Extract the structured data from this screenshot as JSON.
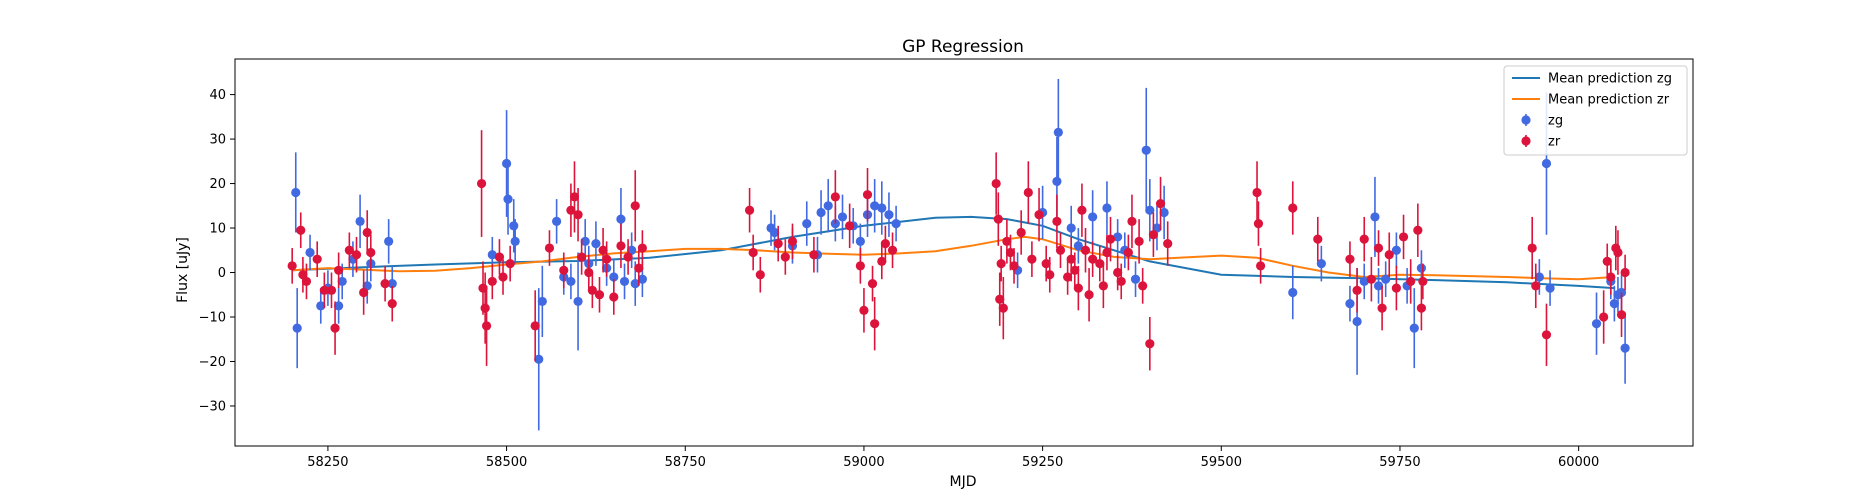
{
  "chart_data": {
    "type": "scatter",
    "title": "GP Regression",
    "xlabel": "MJD",
    "ylabel": "Flux [uJy]",
    "xlim": [
      58120,
      60160
    ],
    "ylim": [
      -39,
      48
    ],
    "x_ticks": [
      58250,
      58500,
      58750,
      59000,
      59250,
      59500,
      59750,
      60000
    ],
    "y_ticks": [
      -30,
      -20,
      -10,
      0,
      10,
      20,
      30,
      40
    ],
    "grid": false,
    "legend_position": "top-right",
    "colors": {
      "mean_zg": "#1f77b4",
      "mean_zr": "#ff7f0e",
      "points_zg": "#4169e1",
      "points_zr": "#dc143c"
    },
    "series": [
      {
        "name": "Mean prediction zg",
        "kind": "line",
        "x": [
          58200,
          58300,
          58400,
          58500,
          58600,
          58700,
          58800,
          58900,
          59000,
          59100,
          59150,
          59200,
          59250,
          59300,
          59400,
          59500,
          59600,
          59700,
          59800,
          59900,
          60000,
          60050
        ],
        "y": [
          0.5,
          1.2,
          1.8,
          2.3,
          2.6,
          3.3,
          5.0,
          8.0,
          10.5,
          12.3,
          12.5,
          12.0,
          10.5,
          7.5,
          2.5,
          -0.5,
          -1.0,
          -1.3,
          -1.7,
          -2.2,
          -3.0,
          -3.5
        ]
      },
      {
        "name": "Mean prediction zr",
        "kind": "line",
        "x": [
          58200,
          58250,
          58300,
          58350,
          58400,
          58450,
          58500,
          58550,
          58600,
          58650,
          58700,
          58750,
          58800,
          58850,
          58900,
          58950,
          59000,
          59050,
          59100,
          59150,
          59200,
          59225,
          59250,
          59300,
          59350,
          59400,
          59450,
          59500,
          59550,
          59600,
          59650,
          59700,
          59750,
          59800,
          59850,
          59900,
          59950,
          60000,
          60050
        ],
        "y": [
          0.5,
          1.0,
          0.6,
          0.3,
          0.4,
          1.0,
          1.8,
          2.5,
          3.5,
          4.3,
          4.8,
          5.3,
          5.3,
          5.0,
          4.5,
          4.2,
          4.0,
          4.3,
          4.8,
          6.0,
          7.5,
          8.0,
          7.5,
          5.0,
          3.5,
          3.0,
          3.4,
          3.8,
          3.3,
          1.5,
          0.0,
          -1.0,
          -0.5,
          -0.6,
          -0.8,
          -1.0,
          -1.3,
          -1.5,
          -1.0
        ]
      },
      {
        "name": "zg",
        "kind": "errorbar",
        "points": [
          [
            58205,
            18.0,
            9
          ],
          [
            58207,
            -12.5,
            9
          ],
          [
            58225,
            4.5,
            4
          ],
          [
            58240,
            -7.5,
            4
          ],
          [
            58250,
            -3.5,
            4
          ],
          [
            58265,
            -7.5,
            4
          ],
          [
            58270,
            -2.0,
            4
          ],
          [
            58285,
            3.0,
            4
          ],
          [
            58295,
            11.5,
            6
          ],
          [
            58305,
            -3.0,
            4
          ],
          [
            58310,
            2.0,
            4
          ],
          [
            58335,
            7.0,
            5
          ],
          [
            58340,
            -2.5,
            4
          ],
          [
            58480,
            4.0,
            4
          ],
          [
            58500,
            24.5,
            12
          ],
          [
            58502,
            16.5,
            8
          ],
          [
            58510,
            10.5,
            6
          ],
          [
            58512,
            7.0,
            5
          ],
          [
            58545,
            -19.5,
            16
          ],
          [
            58550,
            -6.5,
            8
          ],
          [
            58570,
            11.5,
            5
          ],
          [
            58580,
            -1.0,
            4
          ],
          [
            58590,
            -2.0,
            4
          ],
          [
            58600,
            -6.5,
            11
          ],
          [
            58610,
            7.0,
            5
          ],
          [
            58615,
            2.0,
            4
          ],
          [
            58625,
            6.5,
            5
          ],
          [
            58640,
            1.0,
            4
          ],
          [
            58650,
            -1.0,
            4
          ],
          [
            58660,
            12.0,
            7
          ],
          [
            58665,
            -2.0,
            4
          ],
          [
            58675,
            5.0,
            4
          ],
          [
            58680,
            -2.5,
            5
          ],
          [
            58690,
            -1.5,
            4
          ],
          [
            58870,
            10.0,
            4
          ],
          [
            58875,
            9.0,
            4
          ],
          [
            58900,
            6.0,
            4
          ],
          [
            58920,
            11.0,
            5
          ],
          [
            58935,
            4.0,
            4
          ],
          [
            58940,
            13.5,
            5
          ],
          [
            58950,
            15.0,
            6
          ],
          [
            58960,
            11.0,
            4
          ],
          [
            58970,
            12.5,
            5
          ],
          [
            58985,
            10.5,
            4
          ],
          [
            58995,
            7.0,
            4
          ],
          [
            59005,
            13.0,
            5
          ],
          [
            59015,
            15.0,
            6
          ],
          [
            59025,
            14.5,
            6
          ],
          [
            59035,
            13.0,
            5
          ],
          [
            59045,
            11.0,
            4
          ],
          [
            59215,
            0.5,
            4
          ],
          [
            59250,
            13.5,
            6
          ],
          [
            59270,
            20.5,
            10
          ],
          [
            59272,
            31.5,
            12
          ],
          [
            59290,
            10.0,
            5
          ],
          [
            59300,
            6.0,
            4
          ],
          [
            59320,
            12.5,
            6
          ],
          [
            59340,
            14.5,
            6
          ],
          [
            59355,
            8.0,
            4
          ],
          [
            59365,
            5.0,
            4
          ],
          [
            59380,
            -1.5,
            4
          ],
          [
            59395,
            27.5,
            14
          ],
          [
            59400,
            14.0,
            7
          ],
          [
            59410,
            10.0,
            5
          ],
          [
            59420,
            13.5,
            6
          ],
          [
            59600,
            -4.5,
            6
          ],
          [
            59640,
            2.0,
            4
          ],
          [
            59680,
            -7.0,
            4
          ],
          [
            59690,
            -11.0,
            12
          ],
          [
            59700,
            -2.0,
            4
          ],
          [
            59715,
            12.5,
            9
          ],
          [
            59720,
            -3.0,
            4
          ],
          [
            59730,
            -1.5,
            4
          ],
          [
            59745,
            5.0,
            4
          ],
          [
            59760,
            -3.0,
            4
          ],
          [
            59770,
            -12.5,
            9
          ],
          [
            59780,
            1.0,
            4
          ],
          [
            59945,
            -1.0,
            4
          ],
          [
            59955,
            24.5,
            16
          ],
          [
            59960,
            -3.5,
            4
          ],
          [
            60025,
            -11.5,
            7
          ],
          [
            60045,
            -2.0,
            4
          ],
          [
            60050,
            -7.0,
            4
          ],
          [
            60055,
            -5.0,
            4
          ],
          [
            60060,
            -4.5,
            4
          ],
          [
            60065,
            -17.0,
            8
          ]
        ]
      },
      {
        "name": "zr",
        "kind": "errorbar",
        "points": [
          [
            58200,
            1.5,
            4
          ],
          [
            58212,
            9.5,
            4
          ],
          [
            58215,
            -0.5,
            4
          ],
          [
            58220,
            -2.0,
            4
          ],
          [
            58235,
            3.0,
            4
          ],
          [
            58245,
            -4.0,
            4
          ],
          [
            58255,
            -4.0,
            4
          ],
          [
            58260,
            -12.5,
            6
          ],
          [
            58265,
            0.5,
            4
          ],
          [
            58280,
            5.0,
            4
          ],
          [
            58290,
            4.0,
            4
          ],
          [
            58300,
            -4.5,
            5
          ],
          [
            58305,
            9.0,
            5
          ],
          [
            58310,
            4.5,
            4
          ],
          [
            58330,
            -2.5,
            4
          ],
          [
            58340,
            -7.0,
            4
          ],
          [
            58465,
            20.0,
            12
          ],
          [
            58467,
            -3.5,
            6
          ],
          [
            58470,
            -8.0,
            8
          ],
          [
            58472,
            -12.0,
            9
          ],
          [
            58480,
            -2.0,
            4
          ],
          [
            58490,
            3.5,
            4
          ],
          [
            58495,
            -1.0,
            4
          ],
          [
            58505,
            2.0,
            4
          ],
          [
            58540,
            -12.0,
            8
          ],
          [
            58560,
            5.5,
            4
          ],
          [
            58580,
            0.5,
            4
          ],
          [
            58590,
            14.0,
            6
          ],
          [
            58595,
            17.0,
            8
          ],
          [
            58600,
            13.0,
            6
          ],
          [
            58605,
            3.5,
            4
          ],
          [
            58615,
            0.0,
            4
          ],
          [
            58620,
            -4.0,
            4
          ],
          [
            58630,
            -5.0,
            4
          ],
          [
            58635,
            5.0,
            5
          ],
          [
            58640,
            3.0,
            4
          ],
          [
            58650,
            -5.5,
            4
          ],
          [
            58660,
            6.0,
            5
          ],
          [
            58670,
            3.5,
            4
          ],
          [
            58680,
            15.0,
            8
          ],
          [
            58685,
            1.0,
            4
          ],
          [
            58690,
            5.5,
            4
          ],
          [
            58840,
            14.0,
            5
          ],
          [
            58845,
            4.5,
            4
          ],
          [
            58855,
            -0.5,
            4
          ],
          [
            58880,
            6.5,
            4
          ],
          [
            58890,
            3.5,
            4
          ],
          [
            58900,
            7.0,
            4
          ],
          [
            58930,
            4.0,
            4
          ],
          [
            58960,
            17.0,
            6
          ],
          [
            58980,
            10.5,
            5
          ],
          [
            58995,
            1.5,
            4
          ],
          [
            59000,
            -8.5,
            5
          ],
          [
            59005,
            17.5,
            6
          ],
          [
            59012,
            -2.5,
            4
          ],
          [
            59015,
            -11.5,
            6
          ],
          [
            59025,
            2.5,
            4
          ],
          [
            59030,
            6.5,
            4
          ],
          [
            59040,
            5.0,
            4
          ],
          [
            59185,
            20.0,
            7
          ],
          [
            59188,
            12.0,
            6
          ],
          [
            59190,
            -6.0,
            6
          ],
          [
            59192,
            2.0,
            4
          ],
          [
            59195,
            -8.0,
            7
          ],
          [
            59200,
            7.0,
            5
          ],
          [
            59205,
            4.5,
            4
          ],
          [
            59210,
            1.5,
            4
          ],
          [
            59220,
            9.0,
            5
          ],
          [
            59230,
            18.0,
            7
          ],
          [
            59235,
            3.0,
            4
          ],
          [
            59245,
            13.0,
            6
          ],
          [
            59255,
            2.0,
            4
          ],
          [
            59260,
            -0.5,
            4
          ],
          [
            59270,
            11.5,
            6
          ],
          [
            59275,
            5.0,
            4
          ],
          [
            59285,
            -1.0,
            4
          ],
          [
            59290,
            3.0,
            5
          ],
          [
            59295,
            0.5,
            4
          ],
          [
            59300,
            -3.5,
            5
          ],
          [
            59305,
            14.0,
            6
          ],
          [
            59310,
            5.0,
            5
          ],
          [
            59315,
            -5.0,
            6
          ],
          [
            59320,
            3.0,
            4
          ],
          [
            59330,
            2.0,
            4
          ],
          [
            59335,
            -3.0,
            5
          ],
          [
            59340,
            4.5,
            4
          ],
          [
            59345,
            7.5,
            5
          ],
          [
            59355,
            0.0,
            4
          ],
          [
            59360,
            -2.0,
            4
          ],
          [
            59370,
            4.5,
            4
          ],
          [
            59375,
            11.5,
            6
          ],
          [
            59385,
            7.0,
            5
          ],
          [
            59390,
            -3.0,
            4
          ],
          [
            59400,
            -16.0,
            6
          ],
          [
            59405,
            8.5,
            5
          ],
          [
            59415,
            15.5,
            6
          ],
          [
            59425,
            6.5,
            5
          ],
          [
            59550,
            18.0,
            7
          ],
          [
            59552,
            11.0,
            5
          ],
          [
            59555,
            1.5,
            4
          ],
          [
            59600,
            14.5,
            6
          ],
          [
            59635,
            7.5,
            5
          ],
          [
            59680,
            3.0,
            4
          ],
          [
            59690,
            -4.0,
            5
          ],
          [
            59700,
            7.5,
            5
          ],
          [
            59710,
            -1.5,
            5
          ],
          [
            59720,
            5.5,
            4
          ],
          [
            59725,
            -8.0,
            5
          ],
          [
            59735,
            4.0,
            5
          ],
          [
            59745,
            -3.5,
            5
          ],
          [
            59755,
            8.0,
            5
          ],
          [
            59765,
            -2.0,
            5
          ],
          [
            59775,
            9.5,
            6
          ],
          [
            59780,
            -8.0,
            5
          ],
          [
            59782,
            -2.0,
            4
          ],
          [
            59935,
            5.5,
            7
          ],
          [
            59940,
            -3.0,
            5
          ],
          [
            59955,
            -14.0,
            7
          ],
          [
            60035,
            -10.0,
            6
          ],
          [
            60040,
            2.5,
            4
          ],
          [
            60045,
            -1.0,
            4
          ],
          [
            60052,
            5.5,
            5
          ],
          [
            60055,
            4.5,
            5
          ],
          [
            60060,
            -9.5,
            5
          ],
          [
            60065,
            0.0,
            4
          ]
        ]
      }
    ]
  }
}
